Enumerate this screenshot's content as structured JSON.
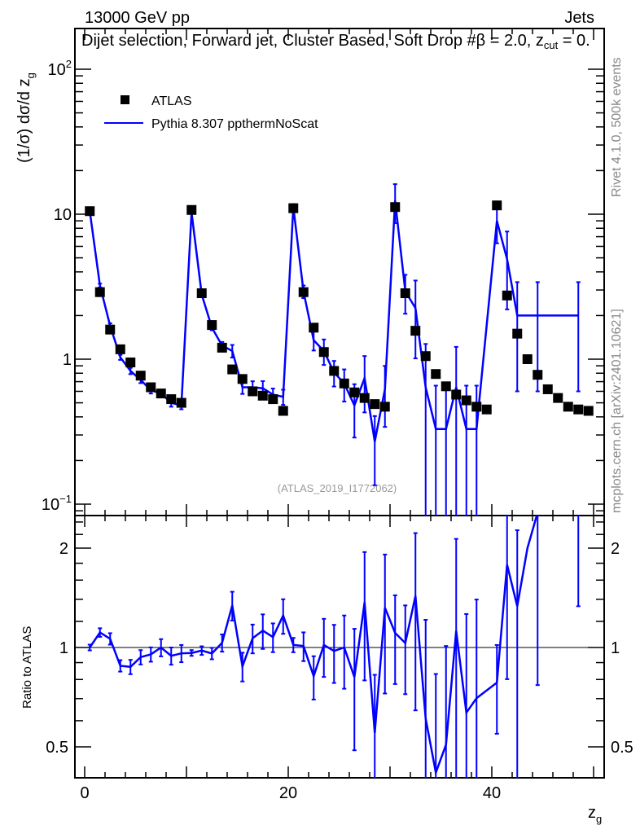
{
  "header": {
    "left": "13000 GeV pp",
    "right": "Jets"
  },
  "side": {
    "rivet": "Rivet 4.1.0,  500k events",
    "mcplots": "mcplots.cern.ch [arXiv:2401.10621]"
  },
  "watermark": "(ATLAS_2019_I1772062)",
  "colors": {
    "data": "#000000",
    "mc": "#0000ff",
    "axis": "#000000",
    "side_text": "#888888"
  },
  "chart_data": [
    {
      "type": "scatter",
      "title_main": "Dijet selection, Forward jet, Cluster Based, Soft Drop #β = 2.0, z",
      "title_sub": "cut",
      "title_tail": " = 0.",
      "ylabel": "(1/σ) dσ/d z",
      "ylabel_sub": "g",
      "yscale": "log",
      "ylim": [
        0.085,
        170
      ],
      "ytick_labels": [
        {
          "v": 0.1,
          "t": "10",
          "sup": "−1"
        },
        {
          "v": 1,
          "t": "1",
          "sup": ""
        },
        {
          "v": 10,
          "t": "10",
          "sup": ""
        },
        {
          "v": 100,
          "t": "10",
          "sup": "2"
        }
      ],
      "xlim": [
        -1,
        51
      ],
      "legend": {
        "placement": "top-left",
        "entries": [
          {
            "name": "ATLAS",
            "marker": "square"
          },
          {
            "name": "Pythia 8.307 ppthermNoScat",
            "marker": "line"
          }
        ]
      },
      "x": [
        0.5,
        1.5,
        2.5,
        3.5,
        4.5,
        5.5,
        6.5,
        7.5,
        8.5,
        9.5,
        10.5,
        11.5,
        12.5,
        13.5,
        14.5,
        15.5,
        16.5,
        17.5,
        18.5,
        19.5,
        20.5,
        21.5,
        22.5,
        23.5,
        24.5,
        25.5,
        26.5,
        27.5,
        28.5,
        29.5,
        30.5,
        31.5,
        32.5,
        33.5,
        34.5,
        35.5,
        36.5,
        37.5,
        38.5,
        39.5,
        40.5,
        41.5,
        42.5,
        43.5,
        44.5,
        45.5,
        46.5,
        47.5,
        48.5,
        49.5
      ],
      "series": [
        {
          "name": "ATLAS",
          "values": [
            10.5,
            2.9,
            1.6,
            1.17,
            0.95,
            0.77,
            0.64,
            0.58,
            0.53,
            0.5,
            10.7,
            2.85,
            1.72,
            1.2,
            0.85,
            0.73,
            0.6,
            0.56,
            0.53,
            0.44,
            11.0,
            2.9,
            1.65,
            1.12,
            0.83,
            0.68,
            0.59,
            0.54,
            0.49,
            0.47,
            11.2,
            2.85,
            1.57,
            1.05,
            0.79,
            0.65,
            0.57,
            0.52,
            0.47,
            0.45,
            11.5,
            2.75,
            1.5,
            1.0,
            0.78,
            0.62,
            0.54,
            0.47,
            0.45,
            0.44
          ]
        },
        {
          "name": "Pythia 8.307 ppthermNoScat",
          "values": [
            10.5,
            3.22,
            1.7,
            1.03,
            0.83,
            0.72,
            0.61,
            0.58,
            0.5,
            0.48,
            10.3,
            2.79,
            1.65,
            1.24,
            1.14,
            0.64,
            0.64,
            0.63,
            0.57,
            0.55,
            11.2,
            2.93,
            1.35,
            1.14,
            0.81,
            0.68,
            0.48,
            0.74,
            0.27,
            0.62,
            12.4,
            2.94,
            2.25,
            0.64,
            0.33,
            0.33,
            0.64,
            0.33,
            0.33,
            null,
            9.0,
            4.9,
            2.0,
            2.0,
            2.0,
            2.0,
            2.0,
            2.0,
            2.0,
            null
          ],
          "rel_err": [
            0.02,
            0.03,
            0.04,
            0.04,
            0.05,
            0.05,
            0.05,
            0.06,
            0.06,
            0.06,
            0.02,
            0.03,
            0.04,
            0.06,
            0.1,
            0.1,
            0.1,
            0.12,
            0.1,
            0.12,
            0.05,
            0.1,
            0.15,
            0.2,
            0.2,
            0.25,
            0.4,
            0.42,
            0.5,
            0.45,
            0.3,
            0.3,
            0.55,
            0.99,
            0.99,
            0.99,
            0.9,
            0.99,
            0.99,
            null,
            0.3,
            0.55,
            0.7,
            null,
            0.7,
            null,
            null,
            null,
            0.7,
            null
          ]
        }
      ]
    },
    {
      "type": "line",
      "ylabel": "Ratio to ATLAS",
      "yscale": "log2",
      "ylim": [
        0.4,
        2.5
      ],
      "ytick_labels": [
        "0.5",
        "1",
        "2"
      ],
      "xlabel": "z",
      "xlabel_sub": "g",
      "xtick_labels": [
        "0",
        "20",
        "40"
      ],
      "reference": 1
    }
  ]
}
